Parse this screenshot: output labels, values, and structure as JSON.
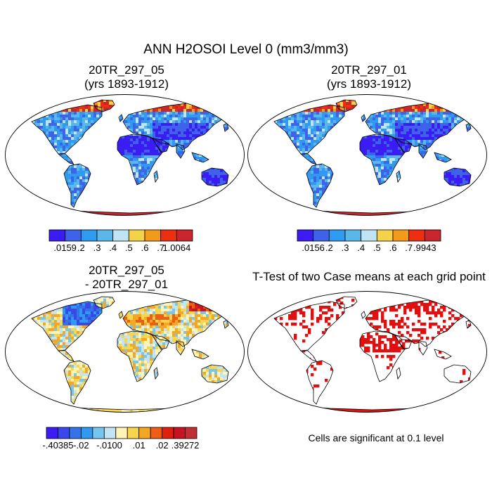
{
  "figure_title": "ANN H2OSOI Level 0 (mm3/mm3)",
  "chart_data": [
    {
      "type": "heatmap",
      "title_line1": "20TR_297_05",
      "title_line2": "(yrs 1893-1912)",
      "colorbar": {
        "colors": [
          "#3b1cf5",
          "#3e63e8",
          "#2e9bf0",
          "#5bb7ea",
          "#bfe4f4",
          "#f6d24a",
          "#f29a1a",
          "#ec2f10",
          "#c8262c"
        ],
        "labels": [
          ".0159",
          ".2",
          ".3",
          ".4",
          ".5",
          ".6",
          ".7",
          "1.0064"
        ]
      }
    },
    {
      "type": "heatmap",
      "title_line1": "20TR_297_01",
      "title_line2": "(yrs 1893-1912)",
      "colorbar": {
        "colors": [
          "#3b1cf5",
          "#3e63e8",
          "#2e9bf0",
          "#5bb7ea",
          "#bfe4f4",
          "#f6d24a",
          "#f29a1a",
          "#ec2f10",
          "#c8262c"
        ],
        "labels": [
          ".0156",
          ".2",
          ".3",
          ".4",
          ".5",
          ".6",
          ".7",
          ".9943"
        ]
      }
    },
    {
      "type": "heatmap",
      "title_line1": "20TR_297_05",
      "title_line2": "- 20TR_297_01",
      "colorbar": {
        "colors": [
          "#3b1cf5",
          "#3a47ea",
          "#3473e6",
          "#2e9bf0",
          "#76c7f0",
          "#c3e4f3",
          "#fff4b5",
          "#f8d54c",
          "#f5a623",
          "#ee5d14",
          "#e0200c",
          "#c81422",
          "#c02f36"
        ],
        "labels": [
          "-.40385",
          "-.02",
          "-.01",
          ".00",
          ".01",
          ".02",
          ".39272"
        ]
      }
    },
    {
      "type": "heatmap",
      "title": "T-Test of two Case means at each grid point",
      "significance_color": "#e01010"
    }
  ],
  "significance_note": "Cells are significant at 0.1 level"
}
